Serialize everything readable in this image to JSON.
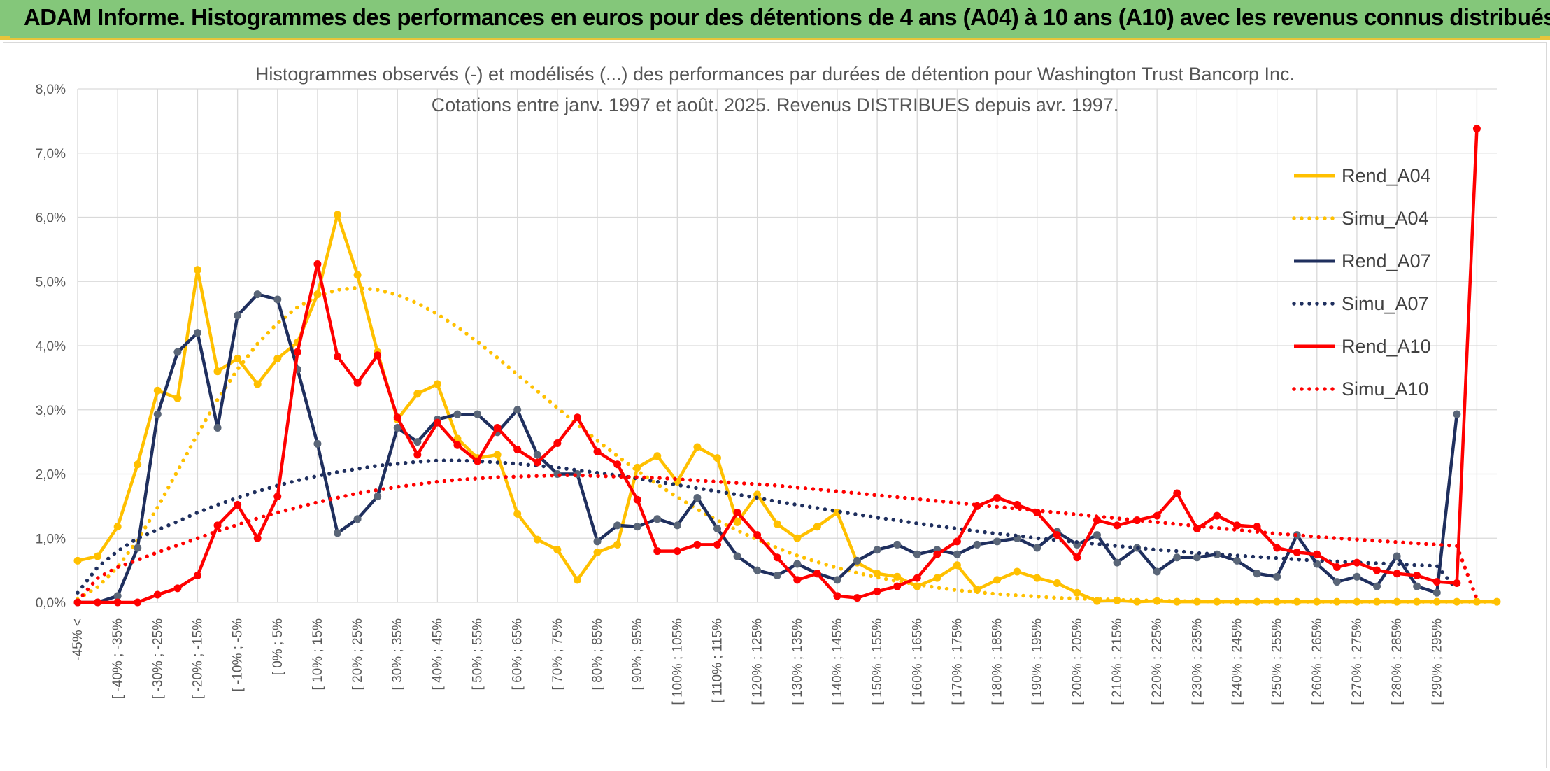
{
  "header": {
    "title": "ADAM Informe. Histogrammes des performances en euros pour des détentions de 4 ans (A04) à 10 ans (A10) avec les revenus connus distribués"
  },
  "chart_data": {
    "type": "line",
    "title": "Histogrammes observés (-) et modélisés (...) des performances par durées de détention pour Washington Trust Bancorp Inc.",
    "subtitle": "Cotations entre janv. 1997 et août. 2025. Revenus DISTRIBUES depuis avr. 1997.",
    "xlabel": "",
    "ylabel": "",
    "ylim": [
      0,
      8
    ],
    "y_ticks": [
      "0,0%",
      "1,0%",
      "2,0%",
      "3,0%",
      "4,0%",
      "5,0%",
      "6,0%",
      "7,0%",
      "8,0%"
    ],
    "x_tick_labels": [
      "-45% <",
      "[ -40% ; -35%",
      "[ -30% ; -25%",
      "[ -20% ; -15%",
      "[ -10% ; -5%",
      "[ 0% ; 5%",
      "[ 10% ; 15%",
      "[ 20% ; 25%",
      "[ 30% ; 35%",
      "[ 40% ; 45%",
      "[ 50% ; 55%",
      "[ 60% ; 65%",
      "[ 70% ; 75%",
      "[ 80% ; 85%",
      "[ 90% ; 95%",
      "[ 100% ; 105%",
      "[ 110% ; 115%",
      "[ 120% ; 125%",
      "[ 130% ; 135%",
      "[ 140% ; 145%",
      "[ 150% ; 155%",
      "[ 160% ; 165%",
      "[ 170% ; 175%",
      "[ 180% ; 185%",
      "[ 190% ; 195%",
      "[ 200% ; 205%",
      "[ 210% ; 215%",
      "[ 220% ; 225%",
      "[ 230% ; 235%",
      "[ 240% ; 245%",
      "[ 250% ; 255%",
      "[ 260% ; 265%",
      "[ 270% ; 275%",
      "[ 280% ; 285%",
      "[ 290% ; 295%"
    ],
    "grid": true,
    "legend_position": "right",
    "series": [
      {
        "name": "Rend_A04",
        "style": "solid",
        "color": "#ffc000",
        "values": [
          0.65,
          0.72,
          1.18,
          2.15,
          3.3,
          3.18,
          5.18,
          3.6,
          3.8,
          3.4,
          3.8,
          4.05,
          4.8,
          6.04,
          5.1,
          3.9,
          2.85,
          3.25,
          3.4,
          2.55,
          2.25,
          2.3,
          1.38,
          0.98,
          0.82,
          0.35,
          0.78,
          0.9,
          2.1,
          2.28,
          1.88,
          2.42,
          2.25,
          1.25,
          1.68,
          1.22,
          1.0,
          1.18,
          1.4,
          0.62,
          0.45,
          0.4,
          0.25,
          0.38,
          0.58,
          0.2,
          0.35,
          0.48,
          0.38,
          0.3,
          0.15,
          0.02,
          0.03,
          0.01,
          0.02,
          0.01,
          0.01,
          0.01,
          0.01,
          0.01,
          0.01,
          0.01,
          0.01,
          0.01,
          0.01,
          0.01,
          0.01,
          0.01,
          0.01,
          0.01,
          0.01,
          0.01
        ]
      },
      {
        "name": "Simu_A04",
        "style": "dotted",
        "color": "#ffc000",
        "values": [
          0.05,
          0.24,
          0.55,
          0.97,
          1.48,
          2.05,
          2.62,
          3.16,
          3.63,
          4.03,
          4.35,
          4.6,
          4.77,
          4.87,
          4.9,
          4.87,
          4.79,
          4.66,
          4.49,
          4.29,
          4.06,
          3.81,
          3.55,
          3.29,
          3.03,
          2.77,
          2.52,
          2.28,
          2.05,
          1.84,
          1.64,
          1.45,
          1.28,
          1.12,
          0.98,
          0.85,
          0.73,
          0.63,
          0.54,
          0.46,
          0.39,
          0.33,
          0.28,
          0.23,
          0.19,
          0.16,
          0.13,
          0.11,
          0.09,
          0.07,
          0.06,
          0.05,
          0.04,
          0.03,
          0.03,
          0.02,
          0.02,
          0.01,
          0.01,
          0.01,
          0.01,
          0.01,
          0.01,
          0.01,
          0.01,
          0.01,
          0.01,
          0.01,
          0.01,
          0.01,
          0.01,
          0.01
        ]
      },
      {
        "name": "Rend_A07",
        "style": "solid",
        "color": "#1f2f5e",
        "values": [
          0.0,
          0.0,
          0.1,
          0.85,
          2.93,
          3.9,
          4.2,
          2.72,
          4.47,
          4.8,
          4.72,
          3.63,
          2.47,
          1.08,
          1.3,
          1.65,
          2.72,
          2.5,
          2.85,
          2.93,
          2.93,
          2.65,
          3.0,
          2.3,
          2.0,
          2.0,
          0.95,
          1.2,
          1.18,
          1.3,
          1.2,
          1.63,
          1.15,
          0.72,
          0.5,
          0.42,
          0.6,
          0.45,
          0.35,
          0.65,
          0.82,
          0.9,
          0.75,
          0.82,
          0.75,
          0.9,
          0.95,
          1.0,
          0.85,
          1.1,
          0.9,
          1.05,
          0.62,
          0.85,
          0.48,
          0.7,
          0.7,
          0.75,
          0.65,
          0.45,
          0.4,
          1.05,
          0.6,
          0.32,
          0.4,
          0.25,
          0.72,
          0.25,
          0.15,
          2.93
        ]
      },
      {
        "name": "Simu_A07",
        "style": "dotted",
        "color": "#1f2f5e",
        "values": [
          0.15,
          0.55,
          0.8,
          1.0,
          1.13,
          1.26,
          1.4,
          1.52,
          1.63,
          1.73,
          1.82,
          1.9,
          1.97,
          2.03,
          2.08,
          2.13,
          2.16,
          2.19,
          2.21,
          2.21,
          2.2,
          2.18,
          2.16,
          2.13,
          2.1,
          2.06,
          2.02,
          1.98,
          1.93,
          1.88,
          1.83,
          1.78,
          1.73,
          1.68,
          1.63,
          1.57,
          1.52,
          1.47,
          1.42,
          1.37,
          1.32,
          1.28,
          1.23,
          1.19,
          1.15,
          1.11,
          1.07,
          1.04,
          1.0,
          0.97,
          0.94,
          0.91,
          0.88,
          0.85,
          0.82,
          0.8,
          0.77,
          0.75,
          0.73,
          0.71,
          0.69,
          0.67,
          0.65,
          0.64,
          0.62,
          0.61,
          0.6,
          0.58,
          0.57,
          0.2
        ]
      },
      {
        "name": "Rend_A10",
        "style": "solid",
        "color": "#ff0000",
        "values": [
          0.0,
          0.0,
          0.0,
          0.0,
          0.12,
          0.22,
          0.42,
          1.2,
          1.52,
          1.0,
          1.65,
          3.9,
          5.27,
          3.83,
          3.42,
          3.85,
          2.88,
          2.3,
          2.8,
          2.45,
          2.2,
          2.72,
          2.38,
          2.18,
          2.48,
          2.88,
          2.35,
          2.15,
          1.6,
          0.8,
          0.8,
          0.9,
          0.9,
          1.4,
          1.05,
          0.7,
          0.35,
          0.45,
          0.1,
          0.07,
          0.17,
          0.25,
          0.38,
          0.75,
          0.95,
          1.5,
          1.63,
          1.52,
          1.4,
          1.05,
          0.7,
          1.28,
          1.2,
          1.28,
          1.35,
          1.7,
          1.15,
          1.35,
          1.2,
          1.18,
          0.85,
          0.78,
          0.75,
          0.55,
          0.62,
          0.5,
          0.45,
          0.42,
          0.32,
          0.3,
          7.38
        ]
      },
      {
        "name": "Simu_A10",
        "style": "dotted",
        "color": "#ff0000",
        "values": [
          0.02,
          0.38,
          0.55,
          0.66,
          0.78,
          0.89,
          1.0,
          1.11,
          1.21,
          1.31,
          1.4,
          1.48,
          1.56,
          1.63,
          1.7,
          1.75,
          1.8,
          1.84,
          1.88,
          1.91,
          1.93,
          1.95,
          1.96,
          1.97,
          1.98,
          1.98,
          1.97,
          1.96,
          1.95,
          1.94,
          1.92,
          1.9,
          1.88,
          1.86,
          1.84,
          1.82,
          1.79,
          1.76,
          1.73,
          1.7,
          1.67,
          1.64,
          1.61,
          1.58,
          1.55,
          1.52,
          1.49,
          1.46,
          1.43,
          1.4,
          1.37,
          1.34,
          1.31,
          1.28,
          1.25,
          1.22,
          1.19,
          1.16,
          1.13,
          1.1,
          1.07,
          1.05,
          1.02,
          1.0,
          0.98,
          0.96,
          0.94,
          0.92,
          0.9,
          0.88,
          0.05
        ]
      }
    ]
  }
}
